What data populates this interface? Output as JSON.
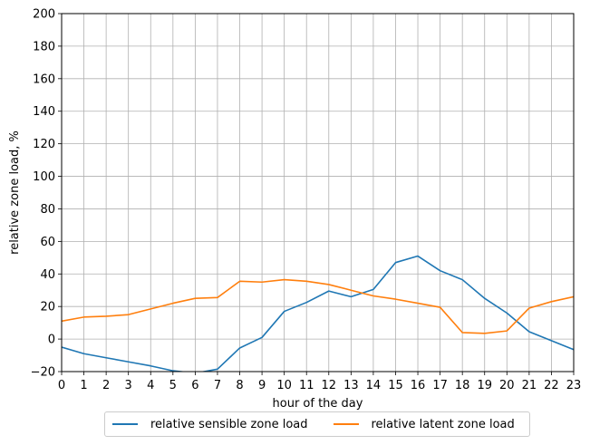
{
  "chart_data": {
    "type": "line",
    "xlabel": "hour of the day",
    "ylabel": "relative zone load, %",
    "xlim": [
      0,
      23
    ],
    "ylim": [
      -20,
      200
    ],
    "grid": true,
    "legend_placement": "bottom-center",
    "x": [
      0,
      1,
      2,
      3,
      4,
      5,
      6,
      7,
      8,
      9,
      10,
      11,
      12,
      13,
      14,
      15,
      16,
      17,
      18,
      19,
      20,
      21,
      22,
      23
    ],
    "x_ticks": [
      0,
      1,
      2,
      3,
      4,
      5,
      6,
      7,
      8,
      9,
      10,
      11,
      12,
      13,
      14,
      15,
      16,
      17,
      18,
      19,
      20,
      21,
      22,
      23
    ],
    "y_ticks": [
      -20,
      0,
      20,
      40,
      60,
      80,
      100,
      120,
      140,
      160,
      180,
      200
    ],
    "series": [
      {
        "name": "relative sensible zone load",
        "color": "#1f77b4",
        "values": [
          -5,
          -9,
          -11.5,
          -14,
          -16.5,
          -19.5,
          -21,
          -18.5,
          -5.5,
          1,
          17,
          22.5,
          29.5,
          26,
          30.5,
          47,
          51,
          42,
          36.5,
          25,
          16,
          4.5,
          -1,
          -6.5
        ]
      },
      {
        "name": "relative latent zone load",
        "color": "#ff7f0e",
        "values": [
          11,
          13.5,
          14,
          15,
          18.5,
          22,
          25,
          25.5,
          35.5,
          35,
          36.5,
          35.5,
          33.5,
          30,
          26.5,
          24.5,
          22,
          19.5,
          4,
          3.5,
          5,
          19,
          23,
          26
        ]
      }
    ]
  }
}
